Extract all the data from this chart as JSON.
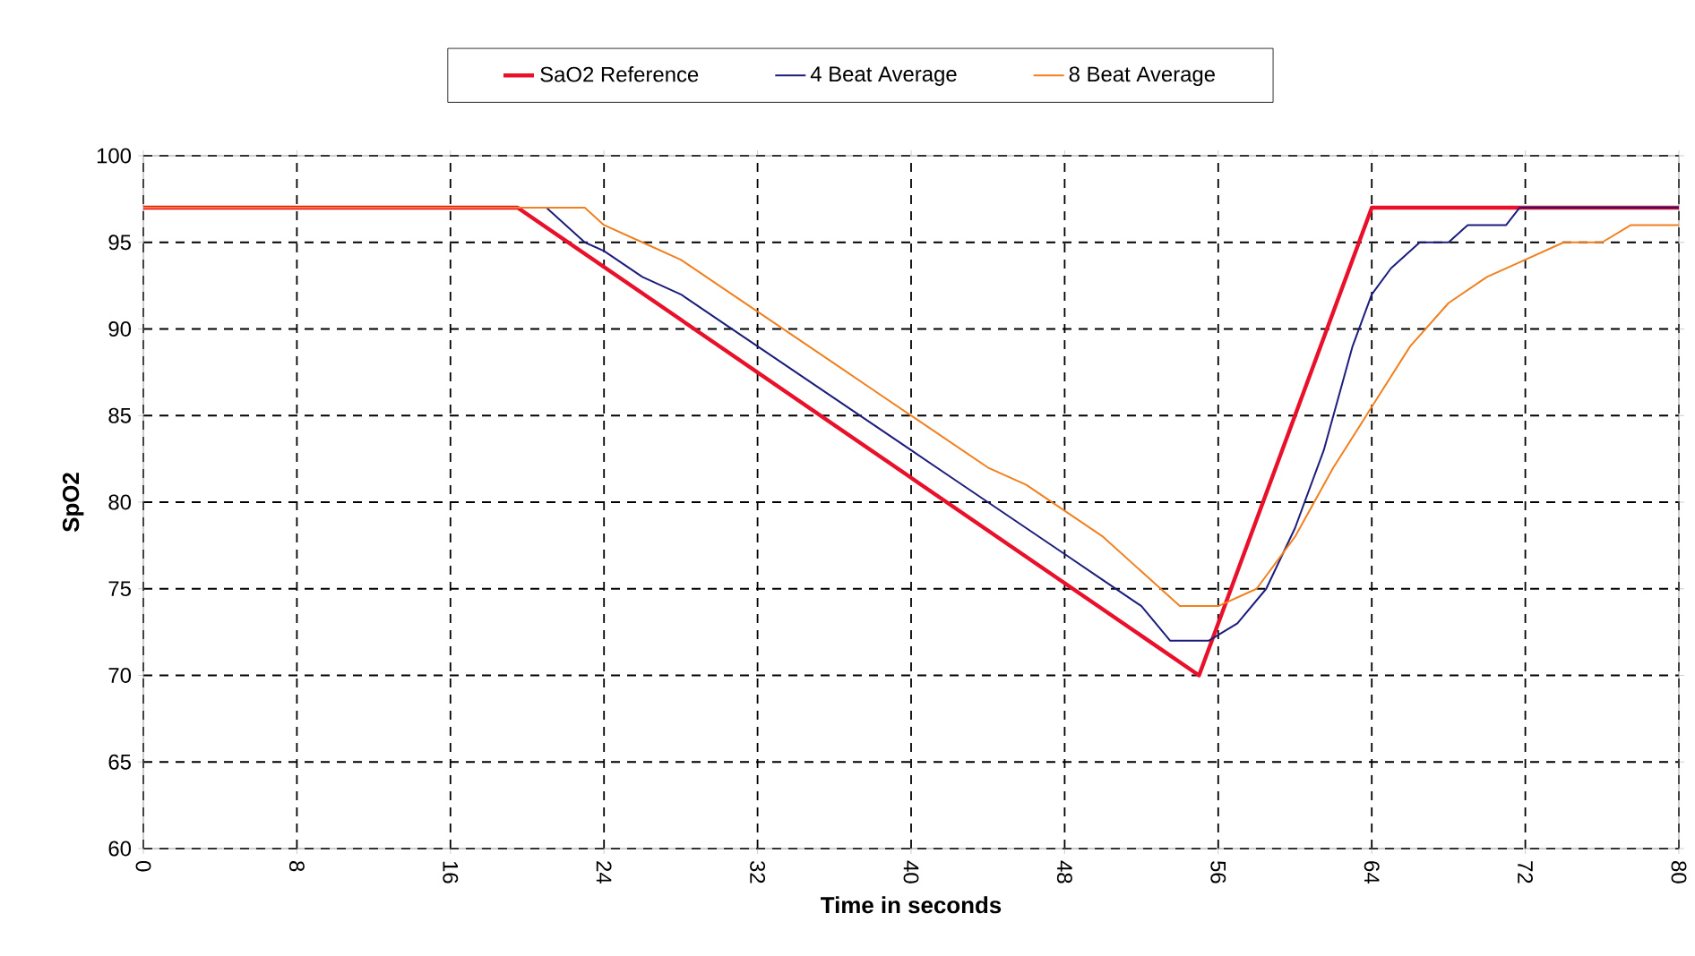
{
  "chart_data": {
    "type": "line",
    "xlabel": "Time in seconds",
    "ylabel": "SpO2",
    "xlim": [
      0,
      80
    ],
    "ylim": [
      60,
      100
    ],
    "xticks": [
      0,
      8,
      16,
      24,
      32,
      40,
      48,
      56,
      64,
      72,
      80
    ],
    "yticks": [
      60,
      65,
      70,
      75,
      80,
      85,
      90,
      95,
      100
    ],
    "grid": true,
    "legend": "top",
    "marker": "none",
    "line_style": "solid",
    "series": [
      {
        "name": "SaO2 Reference",
        "color": "#e8102a",
        "x": [
          0,
          19.5,
          55,
          64,
          80
        ],
        "values": [
          97,
          97,
          70,
          97,
          97
        ]
      },
      {
        "name": "4 Beat Average",
        "color": "#1c1c7c",
        "x": [
          0,
          21,
          22,
          23,
          24,
          26,
          28,
          30,
          32,
          34,
          36,
          38,
          40,
          42,
          44,
          46,
          48,
          50,
          52,
          53.5,
          55.5,
          57,
          58.5,
          60,
          61.5,
          63,
          64,
          65,
          66.5,
          68,
          69,
          71,
          71.7,
          80
        ],
        "values": [
          97,
          97,
          96,
          95,
          94.5,
          93,
          92,
          90.5,
          89,
          87.5,
          86,
          84.5,
          83,
          81.5,
          80,
          78.5,
          77,
          75.5,
          74,
          72,
          72,
          73,
          75,
          78.5,
          83,
          89,
          92,
          93.5,
          95,
          95,
          96,
          96,
          97,
          97
        ]
      },
      {
        "name": "8 Beat Average",
        "color": "#f08020",
        "x": [
          0,
          23,
          24,
          26,
          28,
          30,
          32,
          34,
          36,
          38,
          40,
          42,
          44,
          46,
          48,
          50,
          52,
          54,
          56,
          58,
          60,
          62,
          64,
          66,
          68,
          70,
          72,
          74,
          76,
          77.5,
          80
        ],
        "values": [
          97,
          97,
          96,
          95,
          94,
          92.5,
          91,
          89.5,
          88,
          86.5,
          85,
          83.5,
          82,
          81,
          79.5,
          78,
          76,
          74,
          74,
          75,
          78,
          82,
          85.5,
          89,
          91.5,
          93,
          94,
          95,
          95,
          96,
          96
        ]
      }
    ]
  }
}
